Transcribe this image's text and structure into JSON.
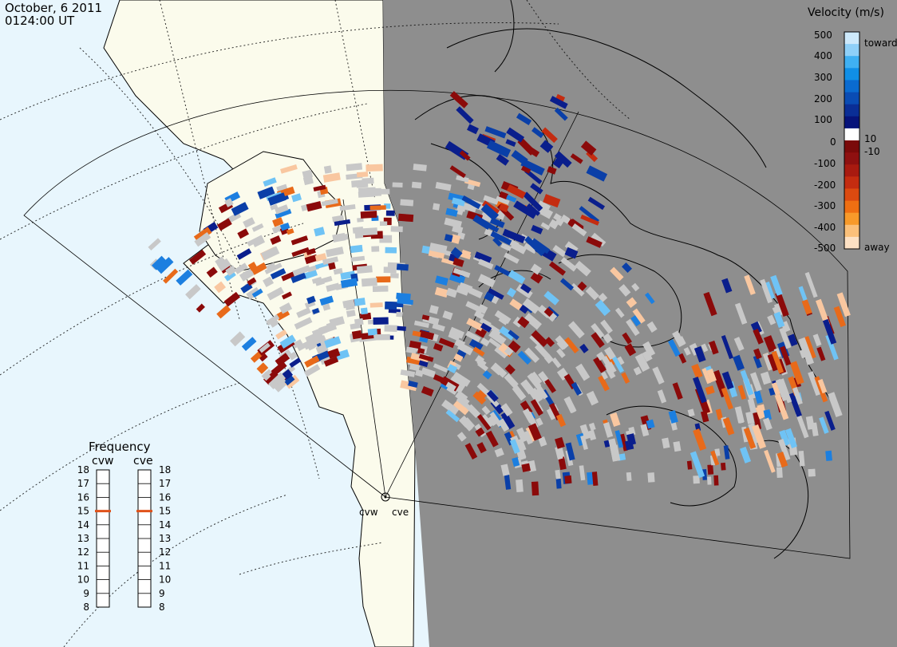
{
  "header": {
    "date": "October, 6 2011",
    "time": "0124:00 UT"
  },
  "velocity_legend": {
    "title": "Velocity (m/s)",
    "ticks": [
      "500",
      "400",
      "300",
      "200",
      "100",
      "10",
      "0",
      "-10",
      "-100",
      "-200",
      "-300",
      "-400",
      "-500"
    ],
    "label_toward": "toward",
    "label_away": "away",
    "colors_top_to_bottom": [
      "#cde9fb",
      "#8fd0f8",
      "#3fb0f2",
      "#108fe6",
      "#0a6bd0",
      "#0a4cb4",
      "#0a2e96",
      "#06137a",
      "#ffffff",
      "#7a0a0a",
      "#8e1010",
      "#a81a10",
      "#c42c10",
      "#dc4a10",
      "#ef6f12",
      "#f89a2a",
      "#fbc07a",
      "#fde1c4"
    ]
  },
  "frequency_panel": {
    "title": "Frequency",
    "left_radar": "cvw",
    "right_radar": "cve",
    "scale": [
      "18",
      "17",
      "16",
      "15",
      "14",
      "13",
      "12",
      "11",
      "10",
      "9",
      "8"
    ],
    "cvw_frequency": 15,
    "cve_frequency": 15,
    "marker_color": "#e0521a"
  },
  "radars": {
    "site_label_left": "cvw",
    "site_label_right": "cve"
  },
  "colors": {
    "ocean": "#e8f6fd",
    "land_day": "#fbfbec",
    "night": "#8e8e8e",
    "ground_scatter": "#c8c8c8"
  }
}
